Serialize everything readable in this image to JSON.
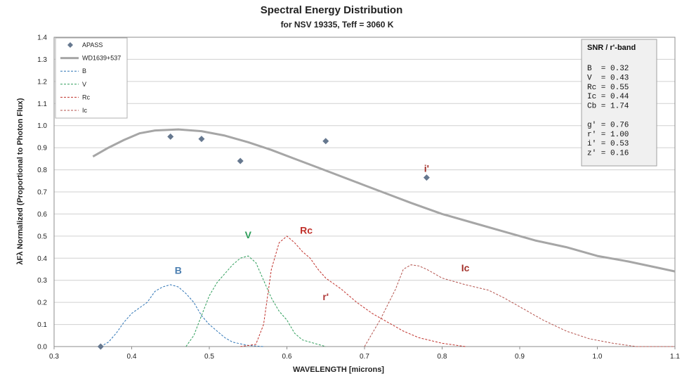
{
  "chart_data": {
    "type": "line",
    "title": "Spectral Energy Distribution",
    "subtitle": "for NSV 19335,   Teff = 3060  K",
    "xlabel": "WAVELENGTH [microns]",
    "ylabel": "λFλ Normalized (Proportional to Photon Flux)",
    "xlim": [
      0.3,
      1.1
    ],
    "ylim": [
      0.0,
      1.4
    ],
    "x_ticks": [
      "0.3",
      "0.4",
      "0.5",
      "0.6",
      "0.7",
      "0.8",
      "0.9",
      "1.0",
      "1.1"
    ],
    "y_ticks": [
      "0.0",
      "0.1",
      "0.2",
      "0.3",
      "0.4",
      "0.5",
      "0.6",
      "0.7",
      "0.8",
      "0.9",
      "1.0",
      "1.1",
      "1.2",
      "1.3",
      "1.4"
    ],
    "grid": "horizontal",
    "legend_position": "top-left",
    "series": [
      {
        "name": "APASS",
        "kind": "markers",
        "color": "#66788f",
        "points": [
          [
            0.36,
            0.0
          ],
          [
            0.45,
            0.95
          ],
          [
            0.49,
            0.94
          ],
          [
            0.54,
            0.84
          ],
          [
            0.65,
            0.93
          ],
          [
            0.78,
            0.765
          ]
        ]
      },
      {
        "name": "WD1639+537",
        "kind": "line",
        "color": "#a6a6a6",
        "points": [
          [
            0.35,
            0.86
          ],
          [
            0.37,
            0.9
          ],
          [
            0.39,
            0.935
          ],
          [
            0.41,
            0.965
          ],
          [
            0.43,
            0.978
          ],
          [
            0.46,
            0.983
          ],
          [
            0.49,
            0.975
          ],
          [
            0.52,
            0.955
          ],
          [
            0.55,
            0.925
          ],
          [
            0.58,
            0.89
          ],
          [
            0.61,
            0.85
          ],
          [
            0.64,
            0.81
          ],
          [
            0.67,
            0.77
          ],
          [
            0.7,
            0.73
          ],
          [
            0.73,
            0.69
          ],
          [
            0.76,
            0.65
          ],
          [
            0.8,
            0.6
          ],
          [
            0.84,
            0.56
          ],
          [
            0.88,
            0.52
          ],
          [
            0.92,
            0.48
          ],
          [
            0.96,
            0.45
          ],
          [
            1.0,
            0.41
          ],
          [
            1.04,
            0.385
          ],
          [
            1.08,
            0.355
          ],
          [
            1.1,
            0.34
          ]
        ]
      },
      {
        "name": "B",
        "kind": "dashed",
        "color": "#2e75b6",
        "points": [
          [
            0.36,
            0.0
          ],
          [
            0.37,
            0.02
          ],
          [
            0.38,
            0.06
          ],
          [
            0.39,
            0.11
          ],
          [
            0.4,
            0.15
          ],
          [
            0.42,
            0.2
          ],
          [
            0.43,
            0.25
          ],
          [
            0.44,
            0.27
          ],
          [
            0.45,
            0.28
          ],
          [
            0.46,
            0.27
          ],
          [
            0.47,
            0.24
          ],
          [
            0.48,
            0.2
          ],
          [
            0.49,
            0.14
          ],
          [
            0.5,
            0.1
          ],
          [
            0.51,
            0.07
          ],
          [
            0.52,
            0.04
          ],
          [
            0.53,
            0.02
          ],
          [
            0.55,
            0.005
          ],
          [
            0.57,
            0.0
          ]
        ]
      },
      {
        "name": "V",
        "kind": "dashed",
        "color": "#2e9e5b",
        "points": [
          [
            0.47,
            0.0
          ],
          [
            0.48,
            0.05
          ],
          [
            0.49,
            0.14
          ],
          [
            0.5,
            0.23
          ],
          [
            0.51,
            0.29
          ],
          [
            0.52,
            0.33
          ],
          [
            0.53,
            0.37
          ],
          [
            0.54,
            0.4
          ],
          [
            0.55,
            0.41
          ],
          [
            0.56,
            0.38
          ],
          [
            0.57,
            0.3
          ],
          [
            0.58,
            0.22
          ],
          [
            0.59,
            0.16
          ],
          [
            0.6,
            0.12
          ],
          [
            0.61,
            0.06
          ],
          [
            0.62,
            0.03
          ],
          [
            0.64,
            0.01
          ],
          [
            0.65,
            0.0
          ]
        ]
      },
      {
        "name": "Rc",
        "kind": "dashed",
        "color": "#c0302a",
        "points": [
          [
            0.54,
            0.0
          ],
          [
            0.56,
            0.01
          ],
          [
            0.57,
            0.1
          ],
          [
            0.58,
            0.35
          ],
          [
            0.59,
            0.47
          ],
          [
            0.6,
            0.5
          ],
          [
            0.61,
            0.47
          ],
          [
            0.62,
            0.43
          ],
          [
            0.63,
            0.4
          ],
          [
            0.64,
            0.35
          ],
          [
            0.65,
            0.31
          ],
          [
            0.67,
            0.26
          ],
          [
            0.69,
            0.2
          ],
          [
            0.71,
            0.15
          ],
          [
            0.73,
            0.11
          ],
          [
            0.75,
            0.07
          ],
          [
            0.77,
            0.04
          ],
          [
            0.8,
            0.015
          ],
          [
            0.83,
            0.0
          ]
        ]
      },
      {
        "name": "Ic",
        "kind": "dashed",
        "color": "#b4534d",
        "points": [
          [
            0.7,
            0.0
          ],
          [
            0.72,
            0.12
          ],
          [
            0.74,
            0.26
          ],
          [
            0.75,
            0.35
          ],
          [
            0.76,
            0.37
          ],
          [
            0.77,
            0.365
          ],
          [
            0.78,
            0.35
          ],
          [
            0.8,
            0.31
          ],
          [
            0.83,
            0.28
          ],
          [
            0.86,
            0.255
          ],
          [
            0.88,
            0.22
          ],
          [
            0.9,
            0.18
          ],
          [
            0.93,
            0.12
          ],
          [
            0.96,
            0.07
          ],
          [
            0.99,
            0.035
          ],
          [
            1.02,
            0.015
          ],
          [
            1.05,
            0.0
          ],
          [
            1.1,
            0.0
          ]
        ]
      }
    ],
    "annotations": [
      {
        "text": "B",
        "x": 0.46,
        "y": 0.33,
        "color": "#4a7eb0"
      },
      {
        "text": "V",
        "x": 0.55,
        "y": 0.49,
        "color": "#2e9e5b"
      },
      {
        "text": "Rc",
        "x": 0.625,
        "y": 0.51,
        "color": "#c0302a"
      },
      {
        "text": "r'",
        "x": 0.65,
        "y": 0.21,
        "color": "#b03a3a"
      },
      {
        "text": "Ic",
        "x": 0.83,
        "y": 0.34,
        "color": "#a3302a"
      },
      {
        "text": "i'",
        "x": 0.78,
        "y": 0.79,
        "color": "#a3302a"
      }
    ]
  },
  "snr_box": {
    "title": "SNR / r'-band",
    "lines": [
      "B  = 0.32",
      "V  = 0.43",
      "Rc = 0.55",
      "Ic = 0.44",
      "Cb = 1.74",
      "",
      "g' = 0.76",
      "r' = 1.00",
      "i' = 0.53",
      "z' = 0.16"
    ]
  }
}
